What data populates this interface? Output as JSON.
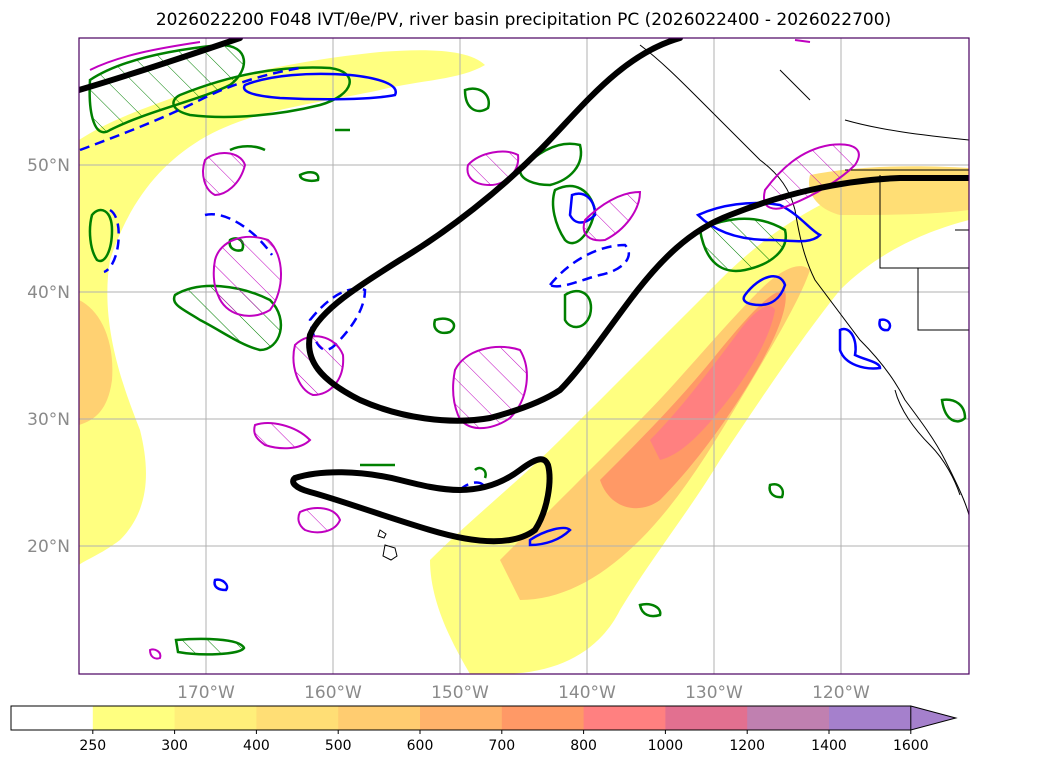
{
  "title": "2026022200 F048 IVT/θe/PV, river basin precipitation PC (2026022400 - 2026022700)",
  "lon_labels": [
    "170°W",
    "160°W",
    "150°W",
    "140°W",
    "130°W",
    "120°W"
  ],
  "lat_labels": [
    "50°N",
    "40°N",
    "30°N",
    "20°N"
  ],
  "colorbar": {
    "levels": [
      "250",
      "300",
      "400",
      "500",
      "600",
      "700",
      "800",
      "1000",
      "1200",
      "1400",
      "1600"
    ],
    "colors": [
      "#ffffff",
      "#ffff80",
      "#ffef7a",
      "#ffde75",
      "#ffcc70",
      "#ffb36b",
      "#ff9966",
      "#ff8080",
      "#e27090",
      "#c080b0",
      "#a580cc"
    ],
    "extend": "max"
  },
  "colors": {
    "ivt_fill": "#ffd86a",
    "theta_e": "#008000",
    "pv_positive": "#0000ff",
    "precip_pc": "#c000c0",
    "jet": "#000000",
    "coastline": "#000000",
    "grid": "#b0b0b0"
  }
}
